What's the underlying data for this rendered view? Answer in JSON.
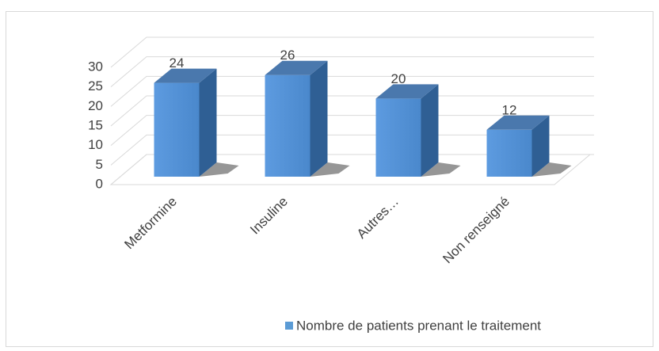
{
  "chart_data": {
    "type": "bar3d",
    "categories": [
      "Metformine",
      "Insuline",
      "Autres…",
      "Non renseigné"
    ],
    "series": [
      {
        "name": "Nombre de patients prenant le traitement",
        "color": "#5b9bd5",
        "values": [
          24,
          26,
          20,
          12
        ]
      }
    ],
    "ylim": [
      0,
      30
    ],
    "yticks": [
      0,
      5,
      10,
      15,
      20,
      25,
      30
    ],
    "grid": true,
    "legend": "bottom"
  }
}
